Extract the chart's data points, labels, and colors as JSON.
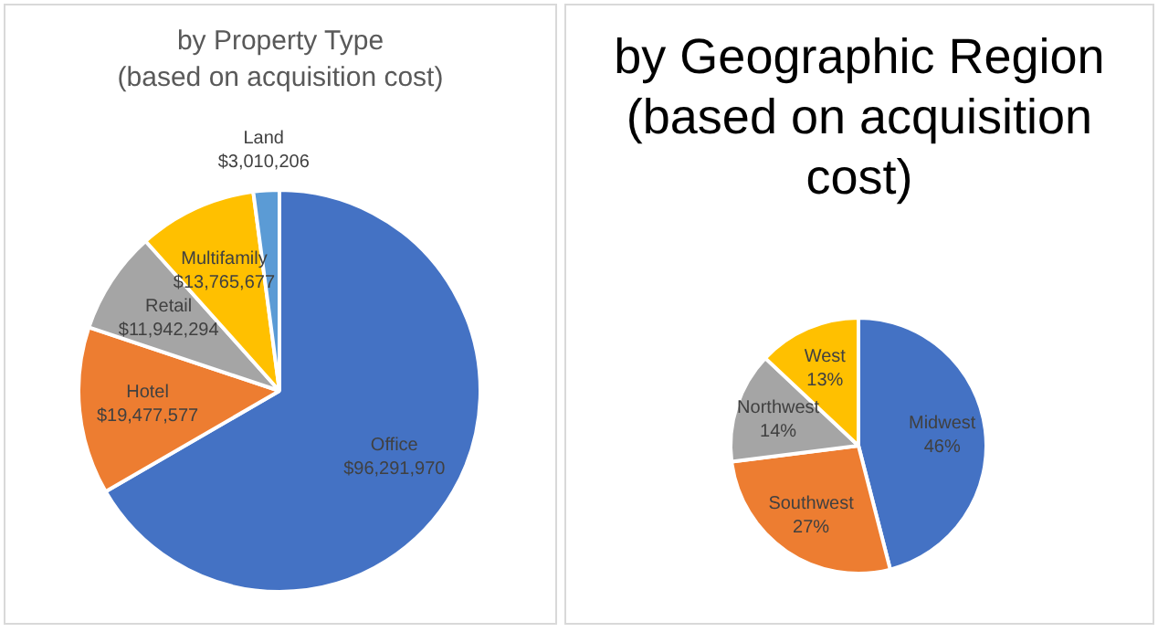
{
  "chart_data": [
    {
      "type": "pie",
      "title": "by Property Type\n(based on acquisition cost)",
      "categories": [
        "Office",
        "Hotel",
        "Retail",
        "Multifamily",
        "Land"
      ],
      "values": [
        96291970,
        19477577,
        11942294,
        13765677,
        3010206
      ],
      "value_labels": [
        "$96,291,970",
        "$19,477,577",
        "$11,942,294",
        "$13,765,677",
        "$3,010,206"
      ],
      "colors": [
        "#4472c4",
        "#ed7d31",
        "#a5a5a5",
        "#ffc000",
        "#5b9bd5"
      ],
      "legend": false
    },
    {
      "type": "pie",
      "title": "by Geographic Region\n(based on acquisition cost)",
      "categories": [
        "Midwest",
        "Southwest",
        "Northwest",
        "West"
      ],
      "values": [
        46,
        27,
        14,
        13
      ],
      "value_labels": [
        "46%",
        "27%",
        "14%",
        "13%"
      ],
      "colors": [
        "#4472c4",
        "#ed7d31",
        "#a5a5a5",
        "#ffc000"
      ],
      "legend": false
    }
  ]
}
